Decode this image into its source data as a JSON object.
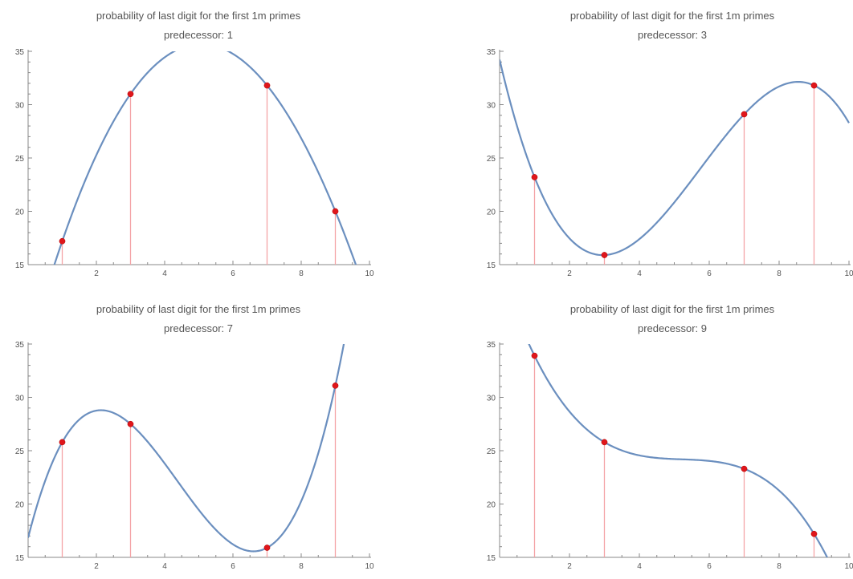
{
  "chart_data": [
    {
      "type": "line",
      "title": "probability of last digit for the first 1m primes",
      "subtitle": "predecessor: 1",
      "xlim": [
        0,
        10
      ],
      "ylim": [
        15,
        35
      ],
      "xticks": [
        2,
        4,
        6,
        8,
        10
      ],
      "yticks": [
        15,
        20,
        25,
        30,
        35
      ],
      "points": [
        {
          "x": 1,
          "y": 17.2
        },
        {
          "x": 3,
          "y": 31.0
        },
        {
          "x": 7,
          "y": 31.8
        },
        {
          "x": 9,
          "y": 20.0
        }
      ],
      "colors": {
        "curve": "#6b8fbf",
        "points": "#e0161b",
        "stems": "#f4a3a6"
      }
    },
    {
      "type": "line",
      "title": "probability of last digit for the first 1m primes",
      "subtitle": "predecessor: 3",
      "xlim": [
        0,
        10
      ],
      "ylim": [
        15,
        35
      ],
      "xticks": [
        2,
        4,
        6,
        8,
        10
      ],
      "yticks": [
        15,
        20,
        25,
        30,
        35
      ],
      "points": [
        {
          "x": 1,
          "y": 23.2
        },
        {
          "x": 3,
          "y": 15.9
        },
        {
          "x": 7,
          "y": 29.1
        },
        {
          "x": 9,
          "y": 31.8
        }
      ],
      "colors": {
        "curve": "#6b8fbf",
        "points": "#e0161b",
        "stems": "#f4a3a6"
      }
    },
    {
      "type": "line",
      "title": "probability of last digit for the first 1m primes",
      "subtitle": "predecessor: 7",
      "xlim": [
        0,
        10
      ],
      "ylim": [
        15,
        35
      ],
      "xticks": [
        2,
        4,
        6,
        8,
        10
      ],
      "yticks": [
        15,
        20,
        25,
        30,
        35
      ],
      "points": [
        {
          "x": 1,
          "y": 25.8
        },
        {
          "x": 3,
          "y": 27.5
        },
        {
          "x": 7,
          "y": 15.9
        },
        {
          "x": 9,
          "y": 31.1
        }
      ],
      "colors": {
        "curve": "#6b8fbf",
        "points": "#e0161b",
        "stems": "#f4a3a6"
      }
    },
    {
      "type": "line",
      "title": "probability of last digit for the first 1m primes",
      "subtitle": "predecessor: 9",
      "xlim": [
        0,
        10
      ],
      "ylim": [
        15,
        35
      ],
      "xticks": [
        2,
        4,
        6,
        8,
        10
      ],
      "yticks": [
        15,
        20,
        25,
        30,
        35
      ],
      "points": [
        {
          "x": 1,
          "y": 33.9
        },
        {
          "x": 3,
          "y": 25.8
        },
        {
          "x": 7,
          "y": 23.3
        },
        {
          "x": 9,
          "y": 17.2
        }
      ],
      "colors": {
        "curve": "#6b8fbf",
        "points": "#e0161b",
        "stems": "#f4a3a6"
      }
    }
  ]
}
